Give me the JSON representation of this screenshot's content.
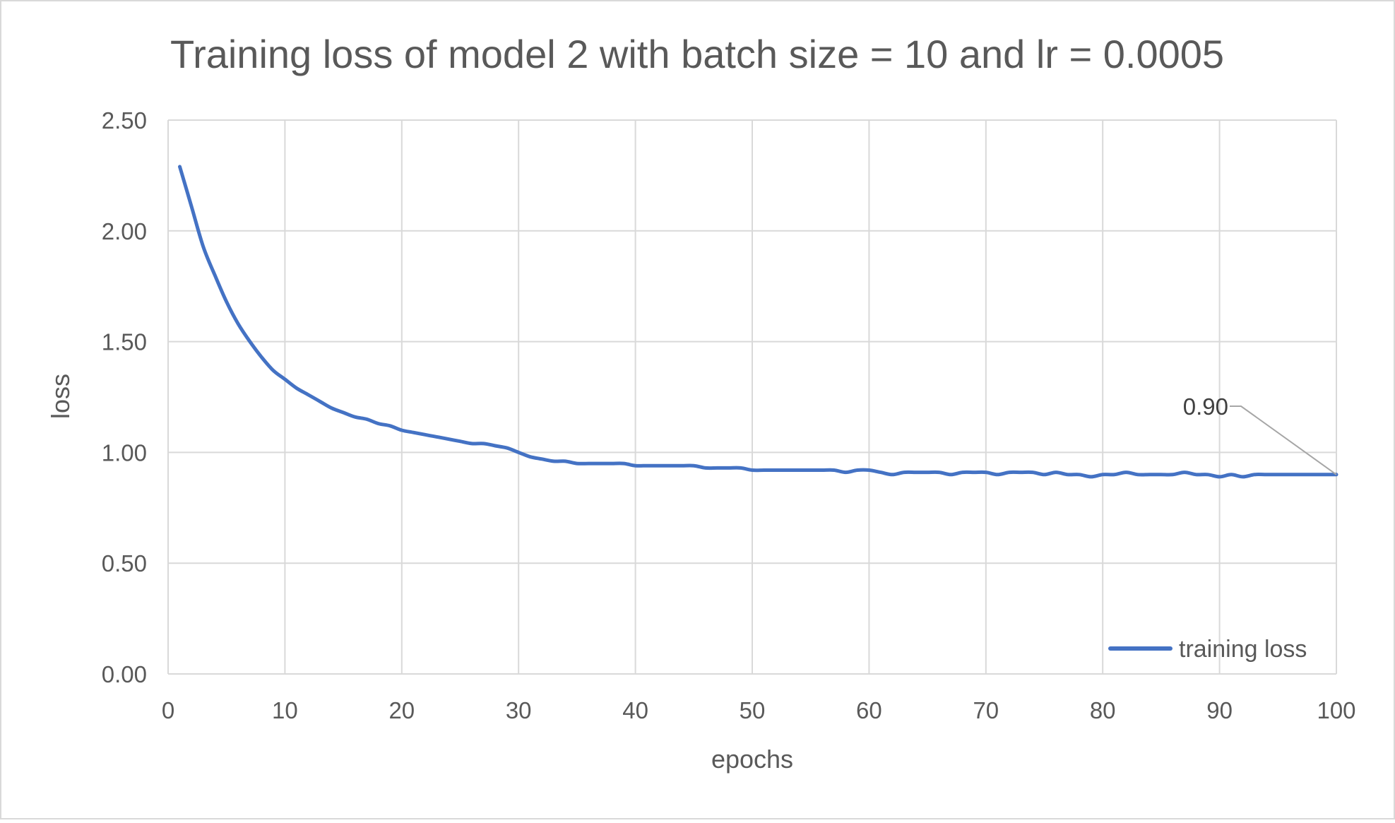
{
  "chart_data": {
    "type": "line",
    "title": "Training loss of model 2 with batch size = 10 and lr = 0.0005",
    "xlabel": "epochs",
    "ylabel": "loss",
    "xlim": [
      0,
      100
    ],
    "ylim": [
      0,
      2.5
    ],
    "x_ticks": [
      0,
      10,
      20,
      30,
      40,
      50,
      60,
      70,
      80,
      90,
      100
    ],
    "y_ticks": [
      0,
      0.5,
      1.0,
      1.5,
      2.0,
      2.5
    ],
    "x_tick_labels": [
      "0",
      "10",
      "20",
      "30",
      "40",
      "50",
      "60",
      "70",
      "80",
      "90",
      "100"
    ],
    "y_tick_labels": [
      "0.00",
      "0.50",
      "1.00",
      "1.50",
      "2.00",
      "2.50"
    ],
    "grid": true,
    "legend_position": "bottom-right",
    "series": [
      {
        "name": "training loss",
        "color": "#4472c4",
        "x": [
          1,
          2,
          3,
          4,
          5,
          6,
          7,
          8,
          9,
          10,
          11,
          12,
          13,
          14,
          15,
          16,
          17,
          18,
          19,
          20,
          21,
          22,
          23,
          24,
          25,
          26,
          27,
          28,
          29,
          30,
          31,
          32,
          33,
          34,
          35,
          36,
          37,
          38,
          39,
          40,
          41,
          42,
          43,
          44,
          45,
          46,
          47,
          48,
          49,
          50,
          51,
          52,
          53,
          54,
          55,
          56,
          57,
          58,
          59,
          60,
          61,
          62,
          63,
          64,
          65,
          66,
          67,
          68,
          69,
          70,
          71,
          72,
          73,
          74,
          75,
          76,
          77,
          78,
          79,
          80,
          81,
          82,
          83,
          84,
          85,
          86,
          87,
          88,
          89,
          90,
          91,
          92,
          93,
          94,
          95,
          96,
          97,
          98,
          99,
          100
        ],
        "values": [
          2.29,
          2.11,
          1.93,
          1.8,
          1.68,
          1.58,
          1.5,
          1.43,
          1.37,
          1.33,
          1.29,
          1.26,
          1.23,
          1.2,
          1.18,
          1.16,
          1.15,
          1.13,
          1.12,
          1.1,
          1.09,
          1.08,
          1.07,
          1.06,
          1.05,
          1.04,
          1.04,
          1.03,
          1.02,
          1.0,
          0.98,
          0.97,
          0.96,
          0.96,
          0.95,
          0.95,
          0.95,
          0.95,
          0.95,
          0.94,
          0.94,
          0.94,
          0.94,
          0.94,
          0.94,
          0.93,
          0.93,
          0.93,
          0.93,
          0.92,
          0.92,
          0.92,
          0.92,
          0.92,
          0.92,
          0.92,
          0.92,
          0.91,
          0.92,
          0.92,
          0.91,
          0.9,
          0.91,
          0.91,
          0.91,
          0.91,
          0.9,
          0.91,
          0.91,
          0.91,
          0.9,
          0.91,
          0.91,
          0.91,
          0.9,
          0.91,
          0.9,
          0.9,
          0.89,
          0.9,
          0.9,
          0.91,
          0.9,
          0.9,
          0.9,
          0.9,
          0.91,
          0.9,
          0.9,
          0.89,
          0.9,
          0.89,
          0.9,
          0.9,
          0.9,
          0.9,
          0.9,
          0.9,
          0.9,
          0.9
        ]
      }
    ],
    "annotations": [
      {
        "text": "0.90",
        "x": 100,
        "y": 0.9
      }
    ]
  },
  "colors": {
    "line": "#4472c4",
    "grid": "#d9d9d9",
    "text": "#595959",
    "leader_line": "#a6a6a6"
  }
}
